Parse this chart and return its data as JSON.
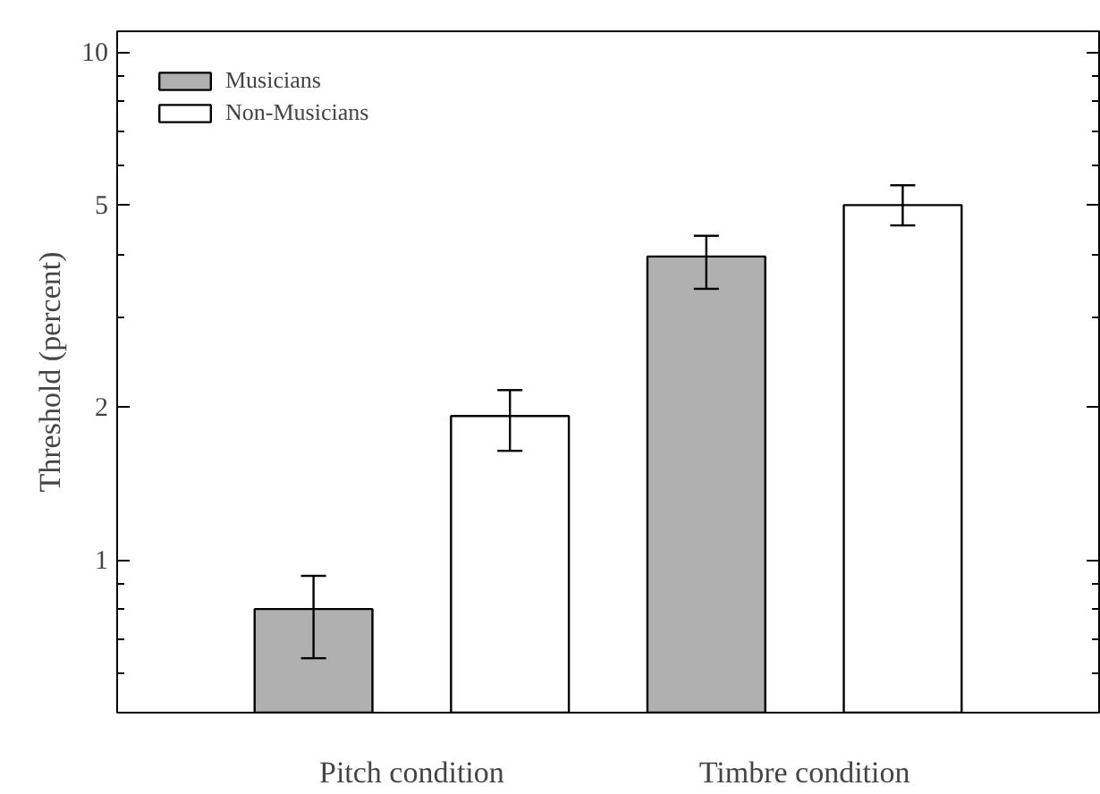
{
  "chart_data": {
    "type": "bar",
    "ylabel": "Threshold (percent)",
    "categories": [
      "Pitch condition",
      "Timbre condition"
    ],
    "series": [
      {
        "name": "Musicians",
        "color": "#b0b0b0",
        "values": [
          0.8,
          3.96
        ],
        "errors": [
          [
            0.64,
            0.93
          ],
          [
            3.42,
            4.35
          ]
        ]
      },
      {
        "name": "Non-Musicians",
        "color": "#ffffff",
        "values": [
          1.92,
          5.0
        ],
        "errors": [
          [
            1.64,
            2.16
          ],
          [
            4.56,
            5.47
          ]
        ]
      }
    ],
    "log": "y",
    "ylim": [
      0.5,
      11
    ],
    "yticks": [
      {
        "value": 0.6,
        "label": null
      },
      {
        "value": 0.7,
        "label": null
      },
      {
        "value": 0.8,
        "label": null
      },
      {
        "value": 0.9,
        "label": null
      },
      1,
      2,
      {
        "value": 3,
        "label": null
      },
      {
        "value": 4,
        "label": null
      },
      5,
      {
        "value": 6,
        "label": null
      },
      {
        "value": 7,
        "label": null
      },
      {
        "value": 8,
        "label": null
      },
      {
        "value": 9,
        "label": null
      },
      10
    ],
    "grid": false,
    "legend": "top left"
  }
}
